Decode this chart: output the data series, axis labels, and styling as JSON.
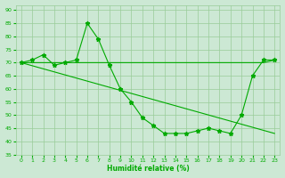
{
  "xlabel": "Humidité relative (%)",
  "background_color": "#cce8d4",
  "grid_color": "#99cc99",
  "line_color": "#00aa00",
  "xlim": [
    -0.5,
    23.5
  ],
  "ylim": [
    35,
    92
  ],
  "yticks": [
    35,
    40,
    45,
    50,
    55,
    60,
    65,
    70,
    75,
    80,
    85,
    90
  ],
  "xticks": [
    0,
    1,
    2,
    3,
    4,
    5,
    6,
    7,
    8,
    9,
    10,
    11,
    12,
    13,
    14,
    15,
    16,
    17,
    18,
    19,
    20,
    21,
    22,
    23
  ],
  "series1_x": [
    0,
    1,
    2,
    3,
    4,
    5,
    6,
    7,
    8,
    9,
    10,
    11,
    12,
    13,
    14,
    15,
    16,
    17,
    18,
    19,
    20,
    21,
    22,
    23
  ],
  "series1_y": [
    70,
    71,
    73,
    69,
    70,
    71,
    85,
    79,
    69,
    60,
    55,
    49,
    46,
    43,
    43,
    43,
    44,
    45,
    44,
    43,
    50,
    65,
    71,
    71
  ],
  "series2_x": [
    0,
    1,
    2,
    3,
    4,
    5,
    6,
    7,
    8,
    9,
    10,
    11,
    12,
    13,
    14,
    15,
    16,
    17,
    18,
    19,
    20,
    21,
    22,
    23
  ],
  "series2_y": [
    70,
    70,
    70,
    70,
    70,
    70,
    70,
    70,
    70,
    70,
    70,
    70,
    70,
    70,
    70,
    70,
    70,
    70,
    70,
    70,
    70,
    70,
    70,
    71
  ],
  "series3_x": [
    0,
    23
  ],
  "series3_y": [
    70,
    43
  ]
}
